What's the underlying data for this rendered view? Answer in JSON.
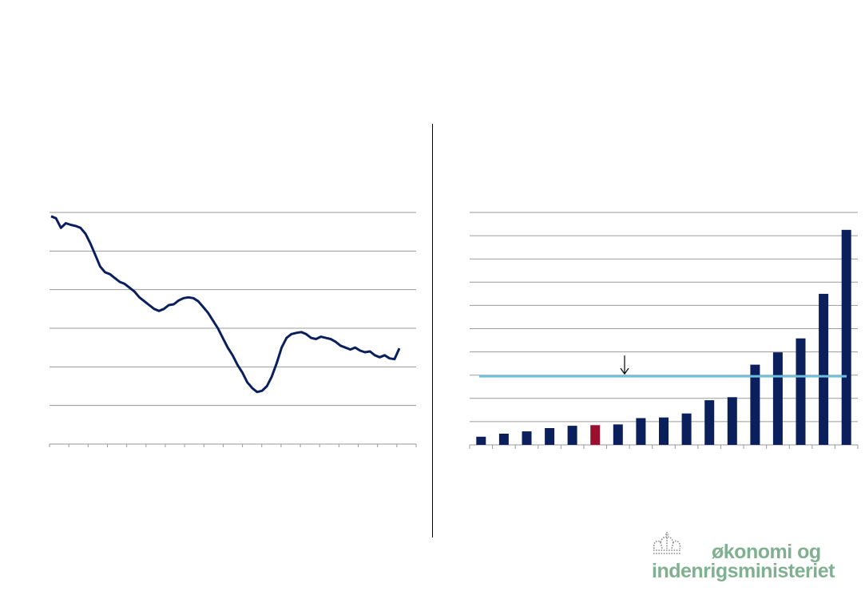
{
  "chart_data": [
    {
      "type": "line",
      "x": [
        0,
        1,
        2,
        3,
        4,
        5,
        6,
        7,
        8,
        9,
        10,
        11,
        12,
        13,
        14,
        15,
        16,
        17,
        18,
        19,
        20,
        21,
        22,
        23,
        24,
        25,
        26,
        27,
        28,
        29,
        30,
        31,
        32,
        33,
        34,
        35,
        36,
        37,
        38,
        39,
        40,
        41,
        42,
        43,
        44,
        45,
        46,
        47,
        48,
        49,
        50,
        51,
        52,
        53,
        54,
        55,
        56,
        57,
        58,
        59,
        60,
        61,
        62,
        63,
        64,
        65,
        66,
        67,
        68,
        69,
        70,
        71
      ],
      "values": [
        4.9,
        4.85,
        4.6,
        4.72,
        4.68,
        4.65,
        4.6,
        4.45,
        4.2,
        3.9,
        3.6,
        3.45,
        3.4,
        3.3,
        3.2,
        3.15,
        3.05,
        2.95,
        2.8,
        2.7,
        2.6,
        2.5,
        2.45,
        2.5,
        2.6,
        2.62,
        2.72,
        2.78,
        2.8,
        2.78,
        2.7,
        2.55,
        2.4,
        2.2,
        2.0,
        1.75,
        1.5,
        1.3,
        1.05,
        0.85,
        0.6,
        0.45,
        0.35,
        0.38,
        0.5,
        0.75,
        1.1,
        1.5,
        1.75,
        1.85,
        1.88,
        1.9,
        1.85,
        1.75,
        1.72,
        1.78,
        1.75,
        1.72,
        1.65,
        1.55,
        1.5,
        1.45,
        1.5,
        1.42,
        1.38,
        1.4,
        1.3,
        1.25,
        1.3,
        1.22,
        1.2,
        1.48
      ],
      "ylim": [
        -1,
        5
      ],
      "grid": true,
      "color": "#0b1f5c"
    },
    {
      "type": "bar",
      "values": [
        0.35,
        0.48,
        0.58,
        0.72,
        0.82,
        0.85,
        0.88,
        1.15,
        1.18,
        1.35,
        1.92,
        2.05,
        3.45,
        3.98,
        4.58,
        6.5,
        9.25
      ],
      "highlight_index": 5,
      "reference_value": 2.95,
      "ylim": [
        0,
        10
      ],
      "grid": true,
      "bar_color": "#0b1f5c",
      "highlight_color": "#9a0f2e",
      "reference_color": "#70bfdd"
    }
  ],
  "logo": {
    "line1": "økonomi og",
    "line2": "indenrigsministeriet",
    "color": "#7fb08f",
    "icon": "crown-icon"
  }
}
